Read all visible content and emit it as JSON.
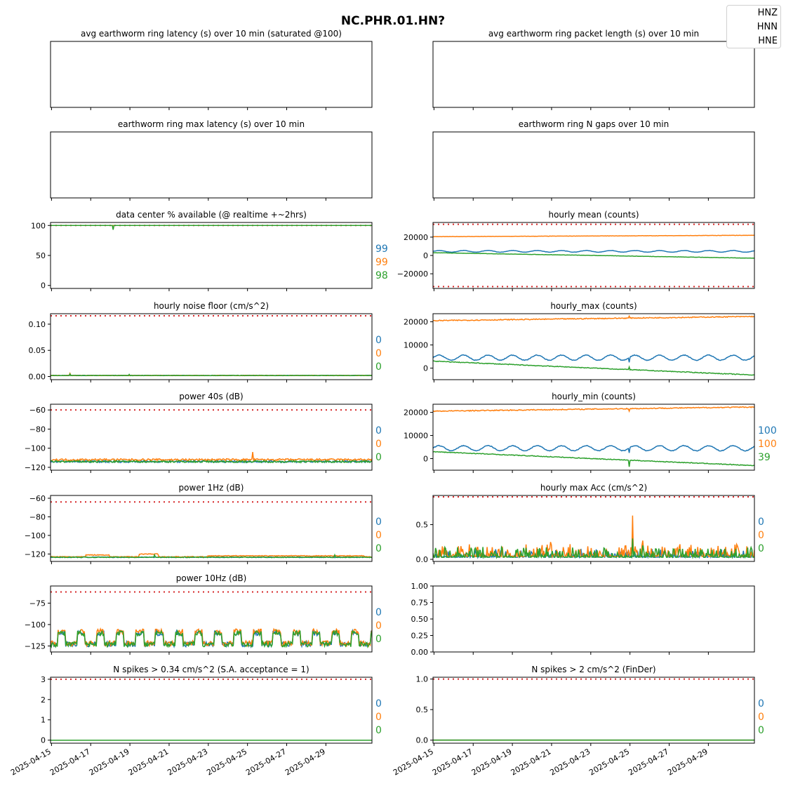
{
  "figure": {
    "title": "NC.PHR.01.HN?",
    "legend": [
      "HNZ",
      "HNN",
      "HNE"
    ]
  },
  "colors": {
    "HNZ": "#1f77b4",
    "HNN": "#ff7f0e",
    "HNE": "#2ca02c",
    "threshold": "#d62728"
  },
  "date_ticks": [
    "2025-04-15",
    "2025-04-17",
    "2025-04-19",
    "2025-04-21",
    "2025-04-23",
    "2025-04-25",
    "2025-04-27",
    "2025-04-29"
  ],
  "chart_data": [
    {
      "id": "ring-latency",
      "title": "avg earthworm ring latency (s)   over 10 min (saturated @100)",
      "type": "line",
      "empty": true,
      "yticks": [],
      "series": [],
      "side_labels": []
    },
    {
      "id": "ring-packet",
      "title": "avg earthworm ring packet length (s)   over 10 min",
      "type": "line",
      "empty": true,
      "yticks": [],
      "series": [],
      "side_labels": []
    },
    {
      "id": "ring-max-latency",
      "title": "earthworm ring max latency (s)   over 10 min",
      "type": "line",
      "empty": true,
      "yticks": [],
      "series": [],
      "side_labels": []
    },
    {
      "id": "ring-gaps",
      "title": "earthworm ring N gaps   over 10 min",
      "type": "line",
      "empty": true,
      "yticks": [],
      "series": [],
      "side_labels": []
    },
    {
      "id": "availability",
      "title": "data center % available (@ realtime +~2hrs)",
      "type": "line",
      "ylim": [
        -5,
        105
      ],
      "yticks": [
        {
          "v": 0,
          "t": "0"
        },
        {
          "v": 50,
          "t": "50"
        },
        {
          "v": 100,
          "t": "100"
        }
      ],
      "threshold": 100,
      "series": [
        {
          "channel": "HNZ",
          "kind": "flat",
          "base": 100,
          "noise": 0,
          "spikes": []
        },
        {
          "channel": "HNN",
          "kind": "flat",
          "base": 100,
          "noise": 0,
          "spikes": []
        },
        {
          "channel": "HNE",
          "kind": "flat",
          "base": 100,
          "noise": 0,
          "spikes": [
            [
              3.2,
              93
            ]
          ]
        }
      ],
      "side_labels": [
        {
          "text": "99",
          "channel": "HNZ"
        },
        {
          "text": "99",
          "channel": "HNN"
        },
        {
          "text": "98",
          "channel": "HNE"
        }
      ]
    },
    {
      "id": "hourly-mean",
      "title": "hourly mean (counts)",
      "type": "line",
      "ylim": [
        -36000,
        36000
      ],
      "yticks": [
        {
          "v": -20000,
          "t": "−20000"
        },
        {
          "v": 0,
          "t": "0"
        },
        {
          "v": 20000,
          "t": "20000"
        }
      ],
      "threshold": [
        34000,
        -34000
      ],
      "series": [
        {
          "channel": "HNZ",
          "kind": "wave",
          "base": 4500,
          "amp": 900,
          "noise": 150,
          "trend": 0,
          "spikes": []
        },
        {
          "channel": "HNN",
          "kind": "flat",
          "base": 20500,
          "noise": 150,
          "trend": 1500,
          "spikes": []
        },
        {
          "channel": "HNE",
          "kind": "flat",
          "base": 3000,
          "noise": 150,
          "trend": -6000,
          "spikes": []
        }
      ],
      "side_labels": []
    },
    {
      "id": "noise-floor",
      "title": "hourly noise floor (cm/s^2)",
      "type": "line",
      "ylim": [
        -0.006,
        0.12
      ],
      "yticks": [
        {
          "v": 0,
          "t": "0.00"
        },
        {
          "v": 0.05,
          "t": "0.05"
        },
        {
          "v": 0.1,
          "t": "0.10"
        }
      ],
      "threshold": 0.116,
      "series": [
        {
          "channel": "HNZ",
          "kind": "flat",
          "base": 0.002,
          "noise": 0.0004,
          "spikes": []
        },
        {
          "channel": "HNN",
          "kind": "flat",
          "base": 0.002,
          "noise": 0.0004,
          "spikes": [
            [
              1,
              0.006
            ]
          ]
        },
        {
          "channel": "HNE",
          "kind": "flat",
          "base": 0.002,
          "noise": 0.0004,
          "spikes": [
            [
              1,
              0.005
            ],
            [
              4,
              0.004
            ]
          ]
        }
      ],
      "side_labels": [
        {
          "text": "0",
          "channel": "HNZ"
        },
        {
          "text": "0",
          "channel": "HNN"
        },
        {
          "text": "0",
          "channel": "HNE"
        }
      ]
    },
    {
      "id": "hourly-max",
      "title": "hourly_max (counts)",
      "type": "line",
      "ylim": [
        -5000,
        23500
      ],
      "yticks": [
        {
          "v": 0,
          "t": "0"
        },
        {
          "v": 10000,
          "t": "10000"
        },
        {
          "v": 20000,
          "t": "20000"
        }
      ],
      "series": [
        {
          "channel": "HNZ",
          "kind": "wave",
          "base": 4500,
          "amp": 1100,
          "noise": 150,
          "trend": 0,
          "spikes": [
            [
              10,
              2500
            ]
          ]
        },
        {
          "channel": "HNN",
          "kind": "flat",
          "base": 20500,
          "noise": 200,
          "trend": 1800,
          "spikes": [
            [
              10,
              22500
            ]
          ]
        },
        {
          "channel": "HNE",
          "kind": "flat",
          "base": 3000,
          "noise": 150,
          "trend": -6000,
          "spikes": [
            [
              10,
              500
            ]
          ]
        }
      ],
      "side_labels": []
    },
    {
      "id": "power-40s",
      "title": "power 40s (dB)",
      "type": "line",
      "ylim": [
        -123,
        -54
      ],
      "yticks": [
        {
          "v": -120,
          "t": "−120"
        },
        {
          "v": -100,
          "t": "−100"
        },
        {
          "v": -80,
          "t": "−80"
        },
        {
          "v": -60,
          "t": "−60"
        }
      ],
      "threshold": -60,
      "series": [
        {
          "channel": "HNZ",
          "kind": "flat",
          "base": -114,
          "noise": 1.0,
          "spikes": []
        },
        {
          "channel": "HNN",
          "kind": "flat",
          "base": -112,
          "noise": 1.0,
          "spikes": [
            [
              10.3,
              -104
            ]
          ]
        },
        {
          "channel": "HNE",
          "kind": "flat",
          "base": -114,
          "noise": 1.0,
          "spikes": []
        }
      ],
      "side_labels": [
        {
          "text": "0",
          "channel": "HNZ"
        },
        {
          "text": "0",
          "channel": "HNN"
        },
        {
          "text": "0",
          "channel": "HNE"
        }
      ]
    },
    {
      "id": "hourly-min",
      "title": "hourly_min (counts)",
      "type": "line",
      "ylim": [
        -5000,
        23500
      ],
      "yticks": [
        {
          "v": 0,
          "t": "0"
        },
        {
          "v": 10000,
          "t": "10000"
        },
        {
          "v": 20000,
          "t": "20000"
        }
      ],
      "series": [
        {
          "channel": "HNZ",
          "kind": "wave",
          "base": 4500,
          "amp": 1100,
          "noise": 150,
          "trend": 0,
          "spikes": [
            [
              10,
              2500
            ]
          ]
        },
        {
          "channel": "HNN",
          "kind": "flat",
          "base": 20500,
          "noise": 200,
          "trend": 1800,
          "spikes": [
            [
              10,
              20500
            ]
          ]
        },
        {
          "channel": "HNE",
          "kind": "flat",
          "base": 3000,
          "noise": 150,
          "trend": -6000,
          "spikes": [
            [
              10,
              -3500
            ]
          ]
        }
      ],
      "side_labels": [
        {
          "text": "100",
          "channel": "HNZ"
        },
        {
          "text": "100",
          "channel": "HNN"
        },
        {
          "text": "39",
          "channel": "HNE"
        }
      ]
    },
    {
      "id": "power-1hz",
      "title": "power 1Hz (dB)",
      "type": "line",
      "ylim": [
        -128,
        -57
      ],
      "yticks": [
        {
          "v": -120,
          "t": "−120"
        },
        {
          "v": -100,
          "t": "−100"
        },
        {
          "v": -80,
          "t": "−80"
        },
        {
          "v": -60,
          "t": "−60"
        }
      ],
      "threshold": -64,
      "series": [
        {
          "channel": "HNZ",
          "kind": "flat",
          "base": -123.5,
          "noise": 0.4,
          "spikes": []
        },
        {
          "channel": "HNN",
          "kind": "plateaus",
          "base": -123,
          "noise": 0.4,
          "plateaus": [
            [
              1.8,
              3.0,
              -121
            ],
            [
              4.5,
              5.5,
              -120
            ],
            [
              8,
              16,
              -122
            ]
          ],
          "spikes": []
        },
        {
          "channel": "HNE",
          "kind": "flat",
          "base": -123.5,
          "noise": 0.4,
          "spikes": [
            [
              5.3,
              -121
            ],
            [
              14.5,
              -121
            ]
          ]
        }
      ],
      "side_labels": [
        {
          "text": "0",
          "channel": "HNZ"
        },
        {
          "text": "0",
          "channel": "HNN"
        },
        {
          "text": "0",
          "channel": "HNE"
        }
      ]
    },
    {
      "id": "max-acc",
      "title": "hourly max Acc (cm/s^2)",
      "type": "line",
      "ylim": [
        -0.03,
        0.92
      ],
      "yticks": [
        {
          "v": 0,
          "t": "0.0"
        },
        {
          "v": 0.5,
          "t": "0.5"
        }
      ],
      "threshold": 0.9,
      "series": [
        {
          "channel": "HNZ",
          "kind": "spiky",
          "base": 0.03,
          "noise": 0.04,
          "spikes": []
        },
        {
          "channel": "HNN",
          "kind": "spiky",
          "base": 0.04,
          "noise": 0.06,
          "spikes": [
            [
              10.2,
              0.63
            ],
            [
              10.7,
              0.27
            ],
            [
              6,
              0.25
            ]
          ]
        },
        {
          "channel": "HNE",
          "kind": "spiky",
          "base": 0.03,
          "noise": 0.05,
          "spikes": [
            [
              10.2,
              0.3
            ],
            [
              10.7,
              0.2
            ]
          ]
        }
      ],
      "side_labels": [
        {
          "text": "0",
          "channel": "HNZ"
        },
        {
          "text": "0",
          "channel": "HNN"
        },
        {
          "text": "0",
          "channel": "HNE"
        }
      ]
    },
    {
      "id": "power-10hz",
      "title": "power 10Hz (dB)",
      "type": "line",
      "ylim": [
        -132,
        -55
      ],
      "yticks": [
        {
          "v": -125,
          "t": "−125"
        },
        {
          "v": -100,
          "t": "−100"
        },
        {
          "v": -75,
          "t": "−75"
        }
      ],
      "threshold": -62,
      "series": [
        {
          "channel": "HNZ",
          "kind": "daily",
          "base": -123,
          "amp": 13,
          "noise": 3,
          "spikes": []
        },
        {
          "channel": "HNN",
          "kind": "daily",
          "base": -122,
          "amp": 14,
          "noise": 3,
          "spikes": []
        },
        {
          "channel": "HNE",
          "kind": "daily",
          "base": -123,
          "amp": 13,
          "noise": 3,
          "spikes": []
        }
      ],
      "side_labels": [
        {
          "text": "0",
          "channel": "HNZ"
        },
        {
          "text": "0",
          "channel": "HNN"
        },
        {
          "text": "0",
          "channel": "HNE"
        }
      ]
    },
    {
      "id": "empty-panel",
      "title": "",
      "type": "line",
      "empty": true,
      "hide_date_ticks": false,
      "ylim": [
        0,
        1
      ],
      "yticks": [
        {
          "v": 0,
          "t": "0.00"
        },
        {
          "v": 0.25,
          "t": "0.25"
        },
        {
          "v": 0.5,
          "t": "0.50"
        },
        {
          "v": 0.75,
          "t": "0.75"
        },
        {
          "v": 1,
          "t": "1.00"
        }
      ],
      "series": [],
      "side_labels": []
    },
    {
      "id": "spikes-034",
      "title": "N spikes > 0.34 cm/s^2 (S.A. acceptance = 1)",
      "type": "line",
      "ylim": [
        -0.15,
        3.1
      ],
      "yticks": [
        {
          "v": 0,
          "t": "0"
        },
        {
          "v": 1,
          "t": "1"
        },
        {
          "v": 2,
          "t": "2"
        },
        {
          "v": 3,
          "t": "3"
        }
      ],
      "threshold": 3,
      "series": [
        {
          "channel": "HNZ",
          "kind": "flat",
          "base": 0,
          "noise": 0,
          "spikes": []
        },
        {
          "channel": "HNN",
          "kind": "flat",
          "base": 0,
          "noise": 0,
          "spikes": []
        },
        {
          "channel": "HNE",
          "kind": "flat",
          "base": 0,
          "noise": 0,
          "spikes": []
        }
      ],
      "side_labels": [
        {
          "text": "0",
          "channel": "HNZ"
        },
        {
          "text": "0",
          "channel": "HNN"
        },
        {
          "text": "0",
          "channel": "HNE"
        }
      ]
    },
    {
      "id": "spikes-2",
      "title": "N spikes > 2 cm/s^2 (FinDer)",
      "type": "line",
      "ylim": [
        -0.05,
        1.03
      ],
      "yticks": [
        {
          "v": 0,
          "t": "0.0"
        },
        {
          "v": 0.5,
          "t": "0.5"
        },
        {
          "v": 1,
          "t": "1.0"
        }
      ],
      "threshold": 1,
      "series": [
        {
          "channel": "HNZ",
          "kind": "flat",
          "base": 0,
          "noise": 0,
          "spikes": []
        },
        {
          "channel": "HNN",
          "kind": "flat",
          "base": 0,
          "noise": 0,
          "spikes": []
        },
        {
          "channel": "HNE",
          "kind": "flat",
          "base": 0,
          "noise": 0,
          "spikes": []
        }
      ],
      "side_labels": [
        {
          "text": "0",
          "channel": "HNZ"
        },
        {
          "text": "0",
          "channel": "HNN"
        },
        {
          "text": "0",
          "channel": "HNE"
        }
      ]
    }
  ]
}
